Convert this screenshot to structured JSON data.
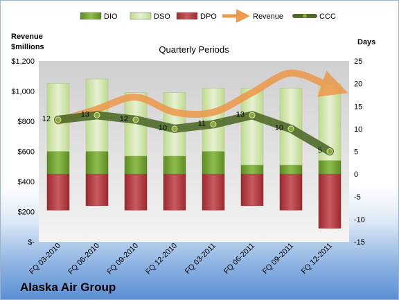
{
  "chart_data": {
    "type": "bar",
    "subtitle": "Quarterly Periods",
    "company": "Alaska Air Group",
    "left_axis_title": [
      "Revenue",
      "$millions"
    ],
    "right_axis_title": "Days",
    "left_ticks": [
      "$-",
      "$200",
      "$400",
      "$600",
      "$800",
      "$1,000",
      "$1,200"
    ],
    "left_range": [
      0,
      1200
    ],
    "right_ticks": [
      "-15",
      "-10",
      "-5",
      "0",
      "5",
      "10",
      "15",
      "20",
      "25"
    ],
    "right_range": [
      -15,
      25
    ],
    "categories": [
      "FQ 03-2010",
      "FQ 06-2010",
      "FQ 09-2010",
      "FQ 12-2010",
      "FQ 03-2011",
      "FQ 06-2011",
      "FQ 09-2011",
      "FQ 12-2011"
    ],
    "series": [
      {
        "name": "DIO",
        "axis": "right",
        "kind": "stacked-bar",
        "values": [
          5,
          5,
          4,
          4,
          5,
          2,
          2,
          3
        ]
      },
      {
        "name": "DSO",
        "axis": "right",
        "kind": "stacked-bar",
        "values": [
          15,
          16,
          14,
          14,
          14,
          17,
          17,
          17
        ]
      },
      {
        "name": "DPO",
        "axis": "right",
        "kind": "stacked-bar",
        "values": [
          -8,
          -7,
          -8,
          -8,
          -8,
          -7,
          -8,
          -12
        ]
      },
      {
        "name": "Revenue",
        "axis": "left",
        "kind": "line",
        "values": [
          800,
          880,
          960,
          860,
          860,
          990,
          1120,
          1030
        ]
      },
      {
        "name": "CCC",
        "axis": "right",
        "kind": "line",
        "values": [
          12,
          13,
          12,
          10,
          11,
          13,
          10,
          5
        ],
        "labels": [
          "12",
          "13",
          "12",
          "10",
          "11",
          "13",
          "10",
          "5"
        ]
      }
    ],
    "legend_position": "top",
    "grid": false,
    "colors": {
      "DIO": "#78a23a",
      "DSO": "#c9dfa3",
      "DPO": "#b34045",
      "Revenue": "#ec9a4d",
      "CCC": "#4f6a2a"
    }
  }
}
